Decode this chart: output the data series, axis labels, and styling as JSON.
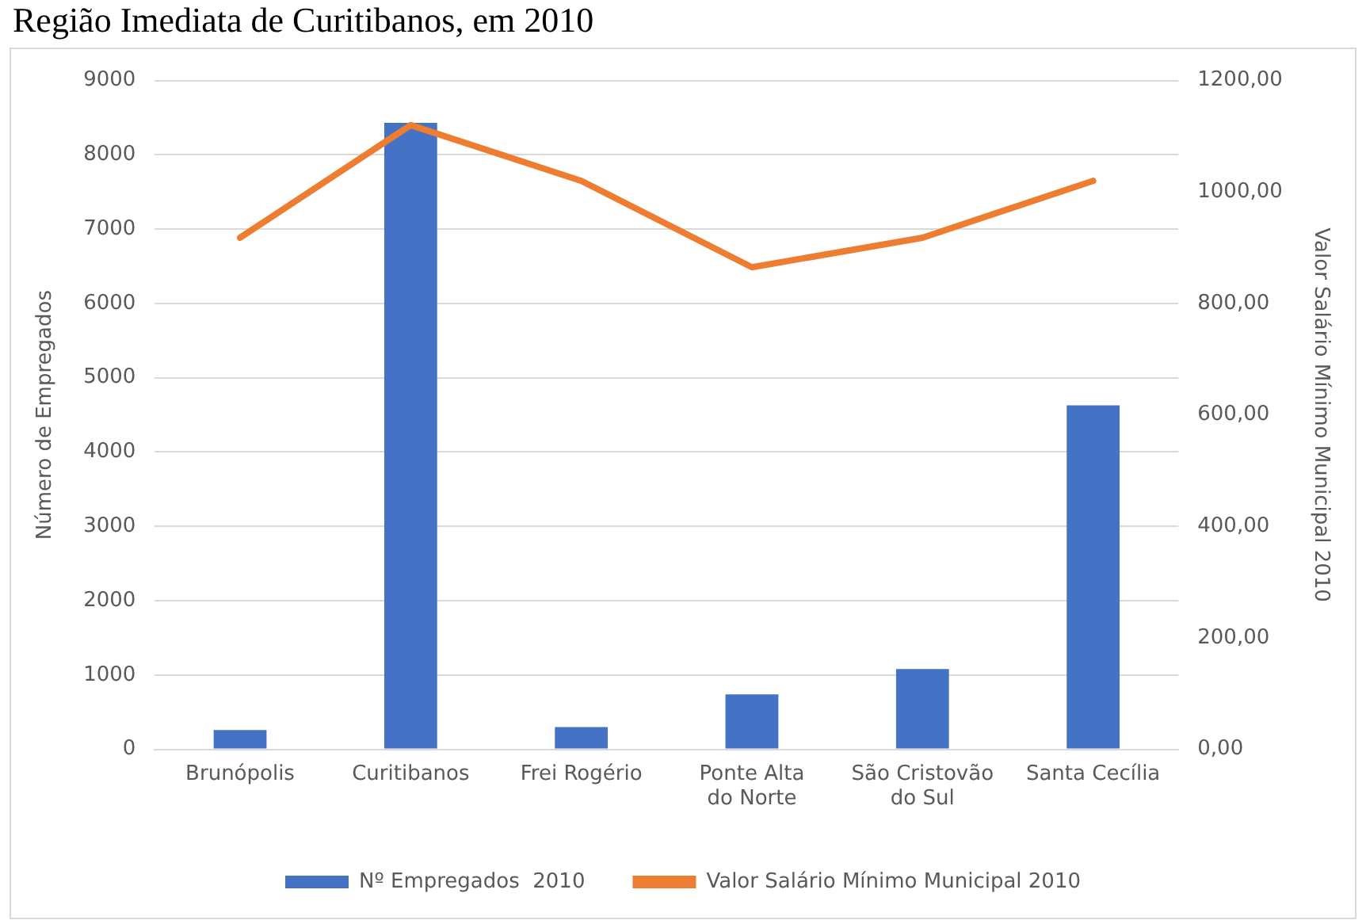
{
  "chart_data": {
    "type": "bar",
    "title": "Região Imediata de Curitibanos, em 2010",
    "ylabel": "Número de Empregados",
    "y2label": "Valor Salário Mínimo Municipal 2010",
    "categories": [
      "Brunópolis",
      "Curitibanos",
      "Frei Rogério",
      "Ponte Alta do Norte",
      "São Cristovão do Sul",
      "Santa Cecília"
    ],
    "series": [
      {
        "name": "Nº Empregados  2010",
        "color": "#4472c4",
        "values": [
          260,
          8430,
          300,
          740,
          1080,
          4630
        ]
      },
      {
        "name": "Valor Salário Mínimo Municipal 2010",
        "type": "line",
        "axis": "y2",
        "color": "#ed7d31",
        "values": [
          918,
          1120,
          1020,
          865,
          918,
          1020
        ]
      }
    ],
    "ylim": [
      0,
      9000
    ],
    "yticks": [
      0,
      1000,
      2000,
      3000,
      4000,
      5000,
      6000,
      7000,
      8000,
      9000
    ],
    "y2lim": [
      0,
      1200
    ],
    "y2ticks": [
      {
        "value": 0,
        "label": "0,00"
      },
      {
        "value": 200,
        "label": "200,00"
      },
      {
        "value": 400,
        "label": "400,00"
      },
      {
        "value": 600,
        "label": "600,00"
      },
      {
        "value": 800,
        "label": "800,00"
      },
      {
        "value": 1000,
        "label": "1000,00"
      },
      {
        "value": 1200,
        "label": "1200,00"
      }
    ],
    "grid": "y",
    "legend": "bottom",
    "marker": "none"
  }
}
